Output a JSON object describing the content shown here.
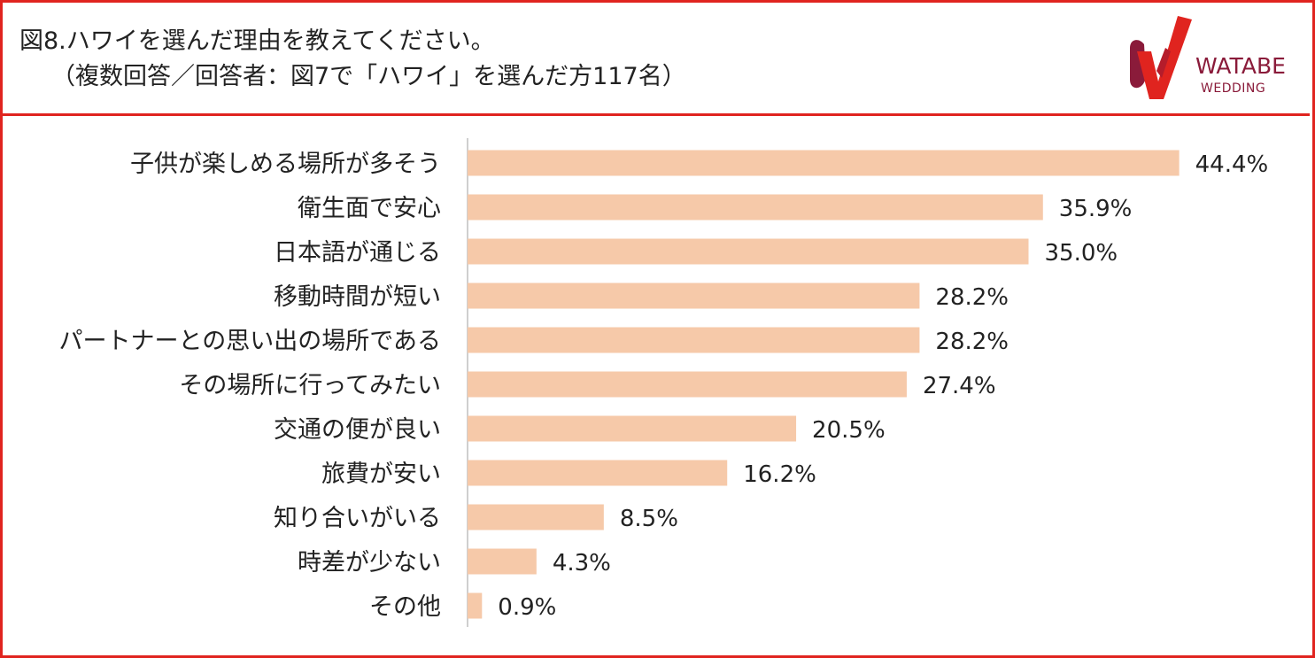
{
  "header": {
    "title_line1": "図8.ハワイを選んだ理由を教えてください。",
    "title_line2": "（複数回答／回答者：図7で「ハワイ」を選んだ方117名）"
  },
  "logo": {
    "text_line1": "WATABE",
    "text_line2": "WEDDING",
    "icon": "watabe-wedding-logo-mark",
    "colors": {
      "red": "#e0241f",
      "maroon": "#8a1b3a"
    }
  },
  "chart_data": {
    "type": "bar",
    "orientation": "horizontal",
    "categories": [
      "子供が楽しめる場所が多そう",
      "衛生面で安心",
      "日本語が通じる",
      "移動時間が短い",
      "パートナーとの思い出の場所である",
      "その場所に行ってみたい",
      "交通の便が良い",
      "旅費が安い",
      "知り合いがいる",
      "時差が少ない",
      "その他"
    ],
    "values": [
      44.4,
      35.9,
      35.0,
      28.2,
      28.2,
      27.4,
      20.5,
      16.2,
      8.5,
      4.3,
      0.9
    ],
    "value_labels": [
      "44.4%",
      "35.9%",
      "35.0%",
      "28.2%",
      "28.2%",
      "27.4%",
      "20.5%",
      "16.2%",
      "8.5%",
      "4.3%",
      "0.9%"
    ],
    "xlim": [
      0,
      50
    ],
    "grid": false,
    "bar_color": "#f6c9a9",
    "axis_color": "#bfbfbf"
  }
}
